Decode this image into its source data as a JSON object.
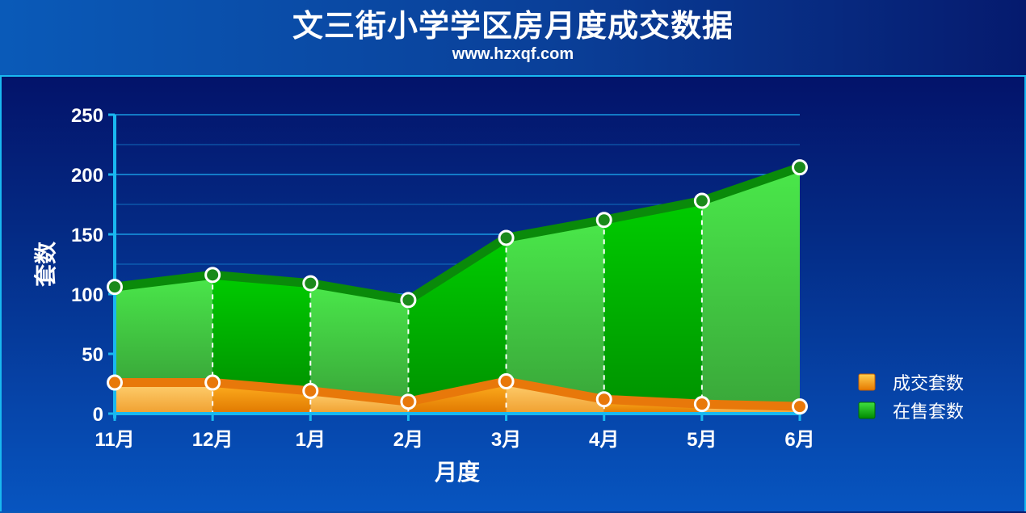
{
  "header": {
    "title": "文三街小学学区房月度成交数据",
    "subtitle": "www.hzxqf.com"
  },
  "chart_data": {
    "type": "area",
    "categories": [
      "11月",
      "12月",
      "1月",
      "2月",
      "3月",
      "4月",
      "5月",
      "6月"
    ],
    "series": [
      {
        "name": "在售套数",
        "values": [
          106,
          116,
          109,
          95,
          147,
          162,
          178,
          206
        ],
        "color": "#1fc21f"
      },
      {
        "name": "成交套数",
        "values": [
          26,
          26,
          19,
          10,
          27,
          12,
          8,
          6
        ],
        "color": "#f08a10"
      }
    ],
    "xlabel": "月度",
    "ylabel": "套数",
    "ylim": [
      0,
      250
    ],
    "yticks": [
      0,
      50,
      100,
      150,
      200,
      250
    ],
    "grid": true,
    "legend": "right",
    "colors": {
      "background": "#0a3f98",
      "axis": "#19b8f0",
      "grid": "#1aa0e8",
      "sale_line": "#0a8a0a",
      "deal_line": "#e8780a",
      "marker_stroke": "#ffffff"
    }
  }
}
